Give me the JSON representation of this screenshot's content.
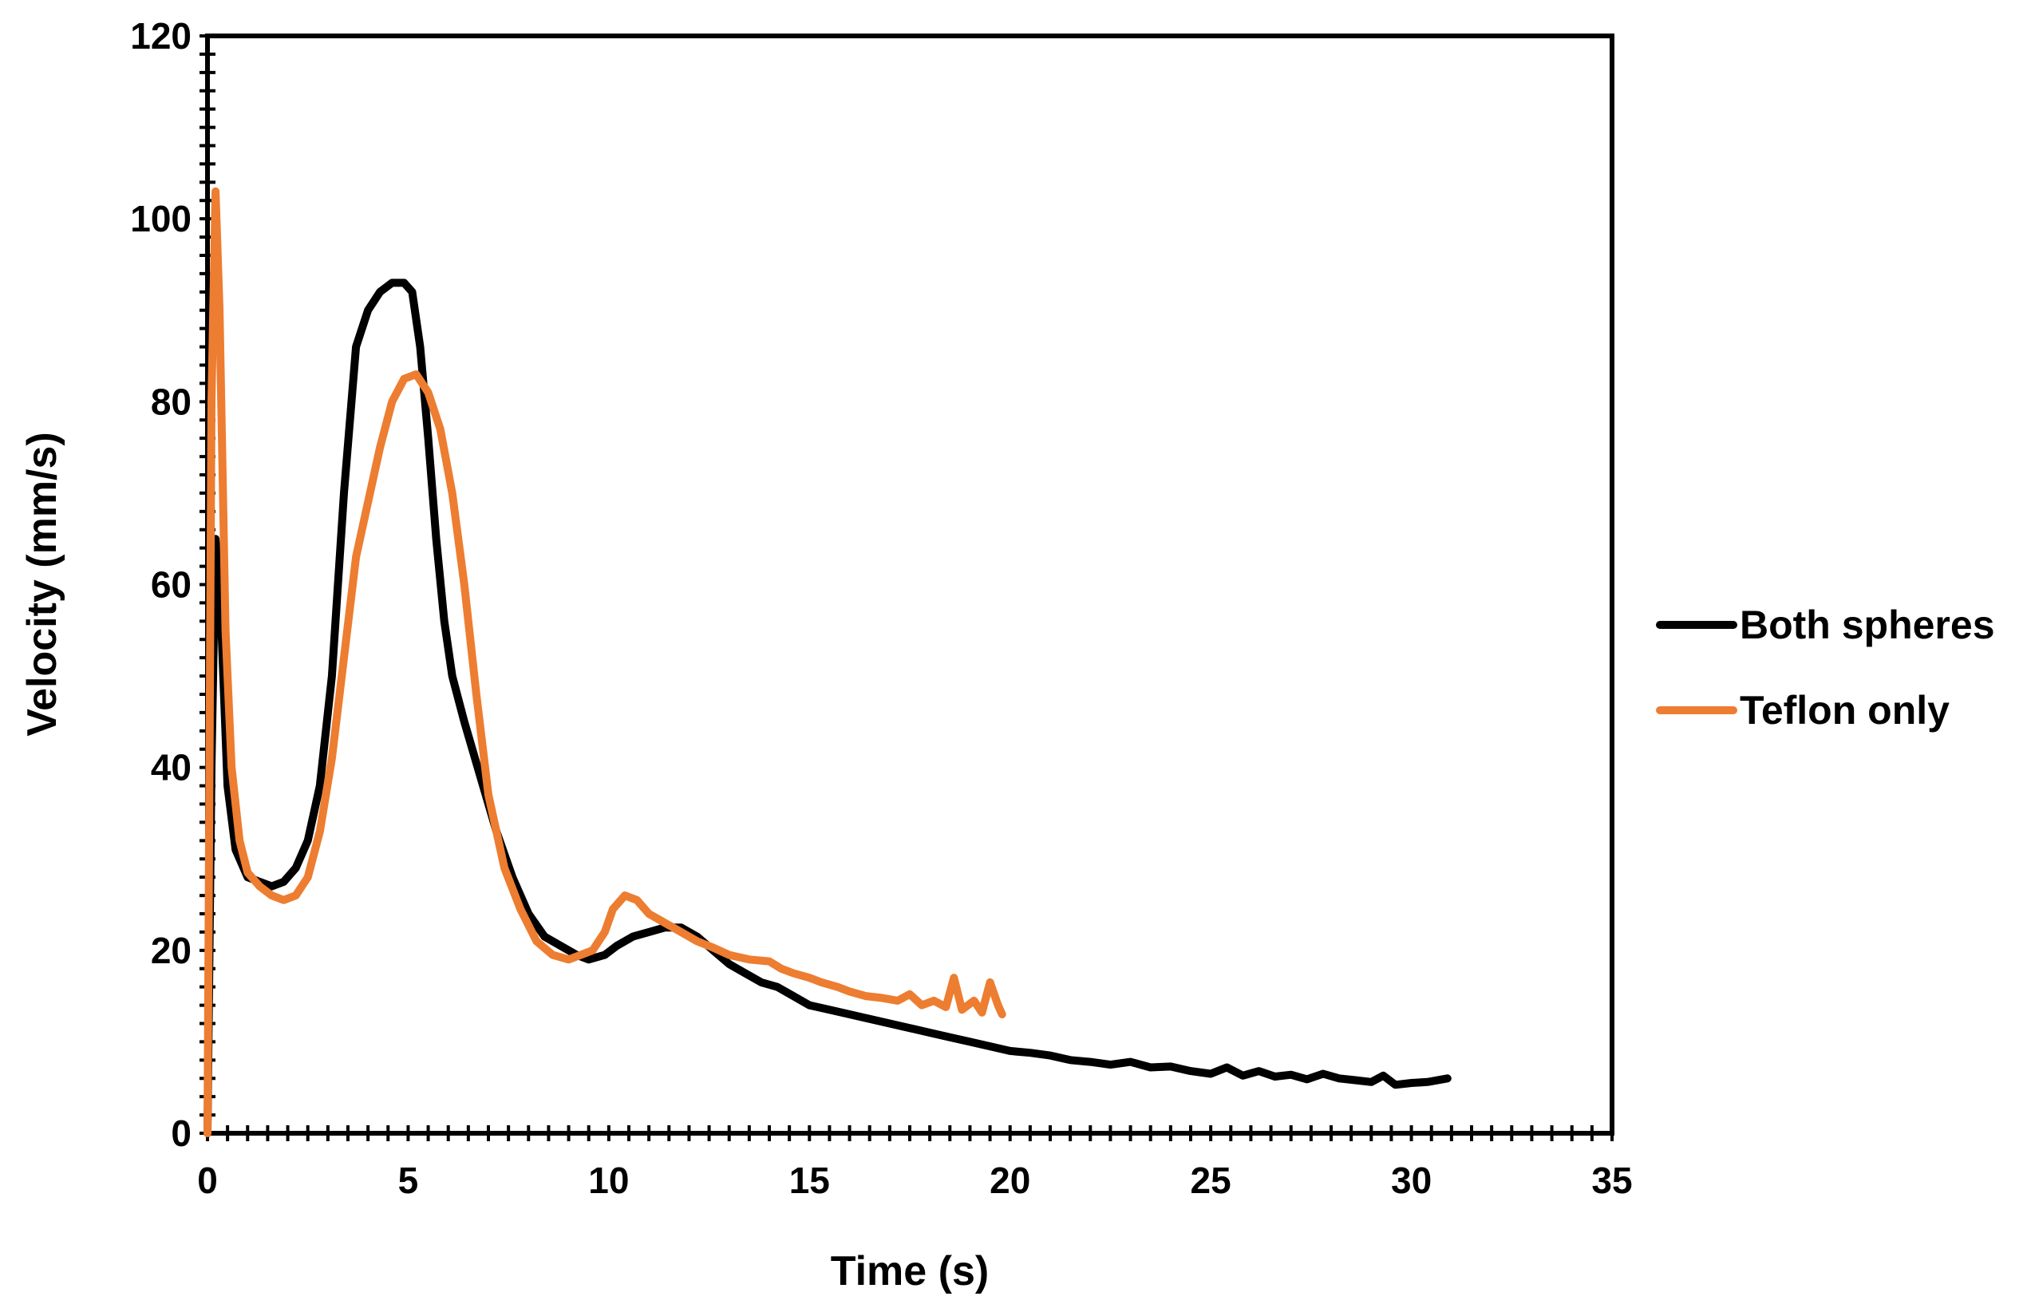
{
  "chart_data": {
    "type": "line",
    "title": "",
    "xlabel": "Time (s)",
    "ylabel": "Velocity (mm/s)",
    "xlim": [
      0,
      35
    ],
    "ylim": [
      0,
      120
    ],
    "x_ticks": [
      0,
      5,
      10,
      15,
      20,
      25,
      30,
      35
    ],
    "y_ticks": [
      0,
      20,
      40,
      60,
      80,
      100,
      120
    ],
    "x_tick_labels": [
      "0",
      "5",
      "10",
      "15",
      "20",
      "25",
      "30",
      "35"
    ],
    "y_tick_labels": [
      "0",
      "20",
      "40",
      "60",
      "80",
      "100",
      "120"
    ],
    "x_minor_step": 0.5,
    "y_minor_step": 2,
    "grid": false,
    "legend_position": "right",
    "series": [
      {
        "name": "Both spheres",
        "color": "#000000",
        "points": [
          [
            0,
            0
          ],
          [
            0.1,
            40
          ],
          [
            0.2,
            65
          ],
          [
            0.35,
            55
          ],
          [
            0.5,
            38
          ],
          [
            0.7,
            31
          ],
          [
            1.0,
            28
          ],
          [
            1.3,
            27.5
          ],
          [
            1.6,
            27
          ],
          [
            1.9,
            27.5
          ],
          [
            2.2,
            29
          ],
          [
            2.5,
            32
          ],
          [
            2.8,
            38
          ],
          [
            3.1,
            50
          ],
          [
            3.4,
            70
          ],
          [
            3.7,
            86
          ],
          [
            4.0,
            90
          ],
          [
            4.3,
            92
          ],
          [
            4.6,
            93
          ],
          [
            4.9,
            93
          ],
          [
            5.1,
            92
          ],
          [
            5.3,
            86
          ],
          [
            5.5,
            76
          ],
          [
            5.7,
            65
          ],
          [
            5.9,
            56
          ],
          [
            6.1,
            50
          ],
          [
            6.4,
            45
          ],
          [
            6.8,
            39
          ],
          [
            7.2,
            33
          ],
          [
            7.6,
            28
          ],
          [
            8.0,
            24
          ],
          [
            8.4,
            21.5
          ],
          [
            8.8,
            20.5
          ],
          [
            9.2,
            19.5
          ],
          [
            9.5,
            19
          ],
          [
            9.9,
            19.5
          ],
          [
            10.2,
            20.5
          ],
          [
            10.6,
            21.5
          ],
          [
            11.0,
            22
          ],
          [
            11.4,
            22.5
          ],
          [
            11.8,
            22.5
          ],
          [
            12.2,
            21.5
          ],
          [
            12.6,
            20
          ],
          [
            13.0,
            18.5
          ],
          [
            13.4,
            17.5
          ],
          [
            13.8,
            16.5
          ],
          [
            14.2,
            16
          ],
          [
            14.6,
            15
          ],
          [
            15.0,
            14
          ],
          [
            15.5,
            13.5
          ],
          [
            16.0,
            13
          ],
          [
            16.5,
            12.5
          ],
          [
            17.0,
            12
          ],
          [
            17.5,
            11.5
          ],
          [
            18.0,
            11
          ],
          [
            18.5,
            10.5
          ],
          [
            19.0,
            10
          ],
          [
            19.5,
            9.5
          ],
          [
            20.0,
            9
          ],
          [
            20.5,
            8.8
          ],
          [
            21.0,
            8.5
          ],
          [
            21.5,
            8
          ],
          [
            22.0,
            7.8
          ],
          [
            22.5,
            7.5
          ],
          [
            23.0,
            7.8
          ],
          [
            23.5,
            7.2
          ],
          [
            24.0,
            7.3
          ],
          [
            24.5,
            6.8
          ],
          [
            25.0,
            6.5
          ],
          [
            25.4,
            7.2
          ],
          [
            25.8,
            6.3
          ],
          [
            26.2,
            6.8
          ],
          [
            26.6,
            6.2
          ],
          [
            27.0,
            6.4
          ],
          [
            27.4,
            5.9
          ],
          [
            27.8,
            6.5
          ],
          [
            28.2,
            6.0
          ],
          [
            28.6,
            5.8
          ],
          [
            29.0,
            5.6
          ],
          [
            29.3,
            6.3
          ],
          [
            29.6,
            5.3
          ],
          [
            30.0,
            5.5
          ],
          [
            30.4,
            5.6
          ],
          [
            30.9,
            6
          ]
        ]
      },
      {
        "name": "Teflon only",
        "color": "#ED7D31",
        "points": [
          [
            0,
            0
          ],
          [
            0.1,
            80
          ],
          [
            0.2,
            103
          ],
          [
            0.3,
            90
          ],
          [
            0.45,
            55
          ],
          [
            0.6,
            40
          ],
          [
            0.8,
            32
          ],
          [
            1.0,
            28.5
          ],
          [
            1.3,
            27
          ],
          [
            1.6,
            26
          ],
          [
            1.9,
            25.5
          ],
          [
            2.2,
            26
          ],
          [
            2.5,
            28
          ],
          [
            2.8,
            33
          ],
          [
            3.1,
            41
          ],
          [
            3.4,
            52
          ],
          [
            3.7,
            63
          ],
          [
            4.0,
            69
          ],
          [
            4.3,
            75
          ],
          [
            4.6,
            80
          ],
          [
            4.9,
            82.5
          ],
          [
            5.2,
            83
          ],
          [
            5.5,
            81
          ],
          [
            5.8,
            77
          ],
          [
            6.1,
            70
          ],
          [
            6.4,
            60
          ],
          [
            6.7,
            48
          ],
          [
            7.0,
            37
          ],
          [
            7.4,
            29
          ],
          [
            7.8,
            24.5
          ],
          [
            8.2,
            21
          ],
          [
            8.6,
            19.5
          ],
          [
            9.0,
            19
          ],
          [
            9.3,
            19.5
          ],
          [
            9.6,
            20
          ],
          [
            9.9,
            22
          ],
          [
            10.1,
            24.5
          ],
          [
            10.4,
            26
          ],
          [
            10.7,
            25.5
          ],
          [
            11.0,
            24
          ],
          [
            11.4,
            23
          ],
          [
            11.8,
            22
          ],
          [
            12.2,
            21
          ],
          [
            12.6,
            20.3
          ],
          [
            13.0,
            19.5
          ],
          [
            13.5,
            19
          ],
          [
            14.0,
            18.8
          ],
          [
            14.3,
            18
          ],
          [
            14.6,
            17.5
          ],
          [
            15.0,
            17
          ],
          [
            15.3,
            16.5
          ],
          [
            15.7,
            16
          ],
          [
            16.0,
            15.5
          ],
          [
            16.4,
            15
          ],
          [
            16.8,
            14.8
          ],
          [
            17.2,
            14.5
          ],
          [
            17.5,
            15.2
          ],
          [
            17.8,
            14
          ],
          [
            18.1,
            14.5
          ],
          [
            18.4,
            13.8
          ],
          [
            18.6,
            17
          ],
          [
            18.8,
            13.5
          ],
          [
            19.1,
            14.5
          ],
          [
            19.3,
            13.2
          ],
          [
            19.5,
            16.5
          ],
          [
            19.7,
            14
          ],
          [
            19.8,
            13
          ]
        ]
      }
    ],
    "legend": [
      {
        "label": "Both spheres",
        "color": "#000000"
      },
      {
        "label": "Teflon only",
        "color": "#ED7D31"
      }
    ]
  }
}
